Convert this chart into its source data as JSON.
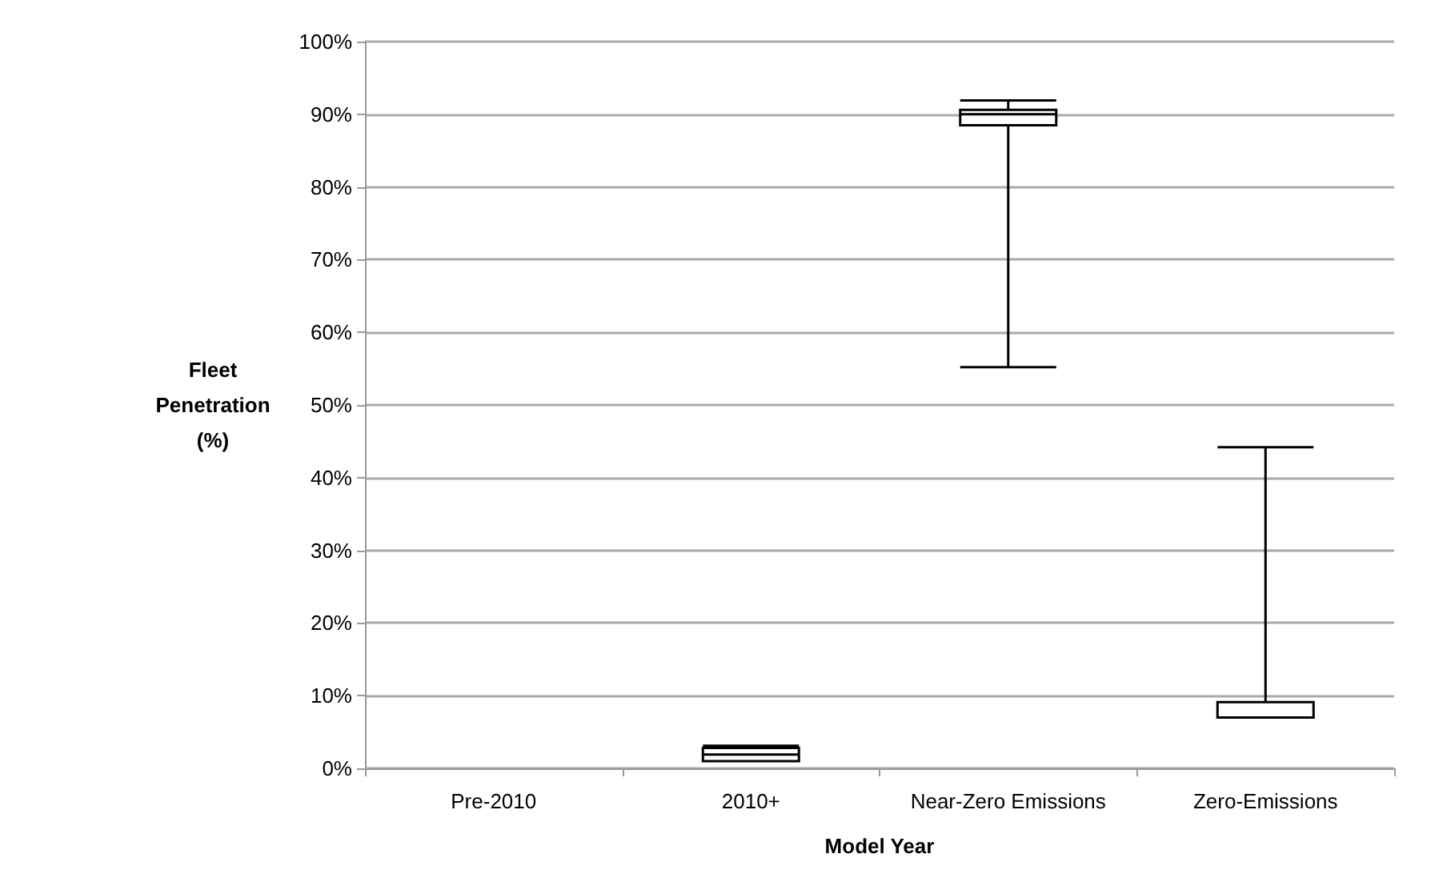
{
  "chart_data": {
    "type": "box",
    "xlabel": "Model Year",
    "ylabel": "Fleet Penetration (%)",
    "categories": [
      "Pre-2010",
      "2010+",
      "Near-Zero Emissions",
      "Zero-Emissions"
    ],
    "boxes": [
      null,
      {
        "low": 1.0,
        "q1": 1.0,
        "median": 1.9,
        "q3": 2.8,
        "high": 3.1
      },
      {
        "low": 55.2,
        "q1": 88.5,
        "median": 90.0,
        "q3": 90.6,
        "high": 91.9
      },
      {
        "low": 7.0,
        "q1": 7.0,
        "median": 9.1,
        "q3": 9.1,
        "high": 44.2
      }
    ],
    "ylim": [
      0,
      100
    ],
    "yticks": [
      {
        "value": 0,
        "label": "0%"
      },
      {
        "value": 10,
        "label": "10%"
      },
      {
        "value": 20,
        "label": "20%"
      },
      {
        "value": 30,
        "label": "30%"
      },
      {
        "value": 40,
        "label": "40%"
      },
      {
        "value": 50,
        "label": "50%"
      },
      {
        "value": 60,
        "label": "60%"
      },
      {
        "value": 70,
        "label": "70%"
      },
      {
        "value": 80,
        "label": "80%"
      },
      {
        "value": 90,
        "label": "90%"
      },
      {
        "value": 100,
        "label": "100%"
      }
    ],
    "grid": "y"
  }
}
